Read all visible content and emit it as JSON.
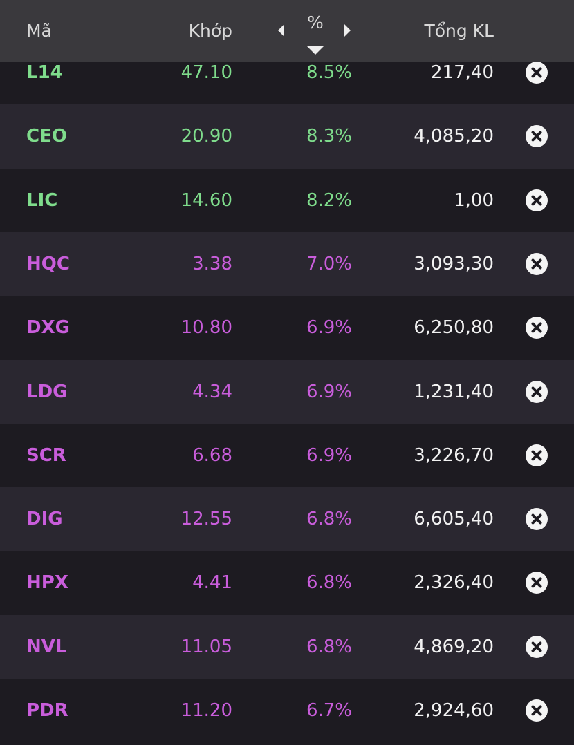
{
  "header": {
    "columns": [
      "Mã",
      "Khớp",
      "%",
      "Tổng KL"
    ]
  },
  "table": {
    "rows": [
      {
        "symbol": "L14",
        "price": "47.10",
        "change": "8.5%",
        "volume": "217,40",
        "color": "#7fdc8c"
      },
      {
        "symbol": "CEO",
        "price": "20.90",
        "change": "8.3%",
        "volume": "4,085,20",
        "color": "#7fdc8c"
      },
      {
        "symbol": "LIC",
        "price": "14.60",
        "change": "8.2%",
        "volume": "1,00",
        "color": "#7fdc8c"
      },
      {
        "symbol": "HQC",
        "price": "3.38",
        "change": "7.0%",
        "volume": "3,093,30",
        "color": "#c95ddb"
      },
      {
        "symbol": "DXG",
        "price": "10.80",
        "change": "6.9%",
        "volume": "6,250,80",
        "color": "#c95ddb"
      },
      {
        "symbol": "LDG",
        "price": "4.34",
        "change": "6.9%",
        "volume": "1,231,40",
        "color": "#c95ddb"
      },
      {
        "symbol": "SCR",
        "price": "6.68",
        "change": "6.9%",
        "volume": "3,226,70",
        "color": "#c95ddb"
      },
      {
        "symbol": "DIG",
        "price": "12.55",
        "change": "6.8%",
        "volume": "6,605,40",
        "color": "#c95ddb"
      },
      {
        "symbol": "HPX",
        "price": "4.41",
        "change": "6.8%",
        "volume": "2,326,40",
        "color": "#c95ddb"
      },
      {
        "symbol": "NVL",
        "price": "11.05",
        "change": "6.8%",
        "volume": "4,869,20",
        "color": "#c95ddb"
      },
      {
        "symbol": "PDR",
        "price": "11.20",
        "change": "6.7%",
        "volume": "2,924,60",
        "color": "#c95ddb"
      }
    ]
  }
}
